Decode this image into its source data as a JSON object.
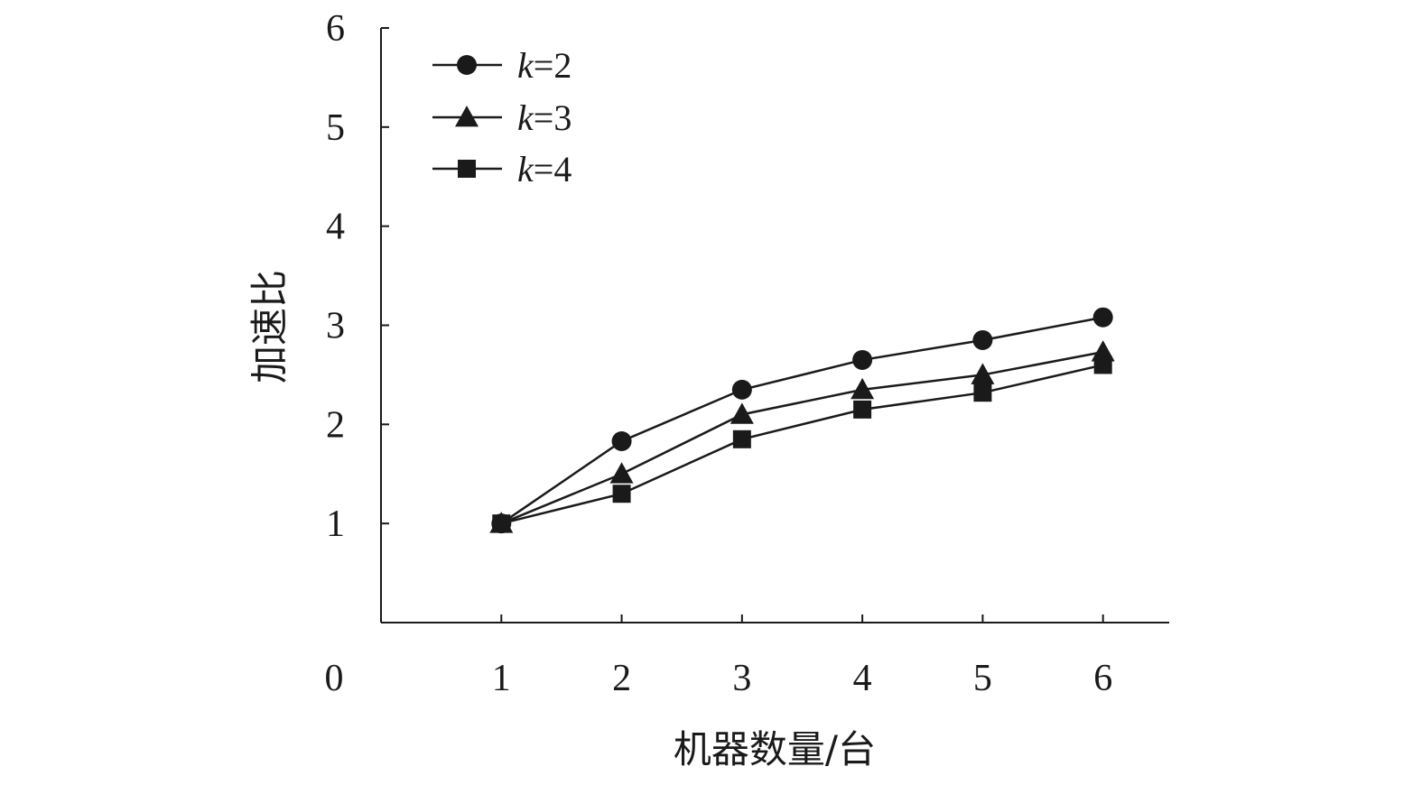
{
  "chart_data": {
    "type": "line",
    "title": "",
    "xlabel": "机器数量/台",
    "ylabel": "加速比",
    "x": [
      1,
      2,
      3,
      4,
      5,
      6
    ],
    "xlim": [
      0,
      6.55
    ],
    "ylim": [
      0,
      6
    ],
    "x_ticks": [
      "0",
      "1",
      "2",
      "3",
      "4",
      "5",
      "6"
    ],
    "y_ticks": [
      "1",
      "2",
      "3",
      "4",
      "5",
      "6"
    ],
    "grid": false,
    "legend_position": "top-left",
    "series": [
      {
        "name": "k=2",
        "var": "k",
        "eq": "=2",
        "marker": "circle",
        "color": "#1a1a1a",
        "values": [
          1.0,
          1.83,
          2.35,
          2.65,
          2.85,
          3.08
        ]
      },
      {
        "name": "k=3",
        "var": "k",
        "eq": "=3",
        "marker": "triangle",
        "color": "#1a1a1a",
        "values": [
          1.0,
          1.5,
          2.1,
          2.35,
          2.5,
          2.73
        ]
      },
      {
        "name": "k=4",
        "var": "k",
        "eq": "=4",
        "marker": "square",
        "color": "#1a1a1a",
        "values": [
          1.0,
          1.3,
          1.85,
          2.15,
          2.32,
          2.6
        ]
      }
    ]
  }
}
